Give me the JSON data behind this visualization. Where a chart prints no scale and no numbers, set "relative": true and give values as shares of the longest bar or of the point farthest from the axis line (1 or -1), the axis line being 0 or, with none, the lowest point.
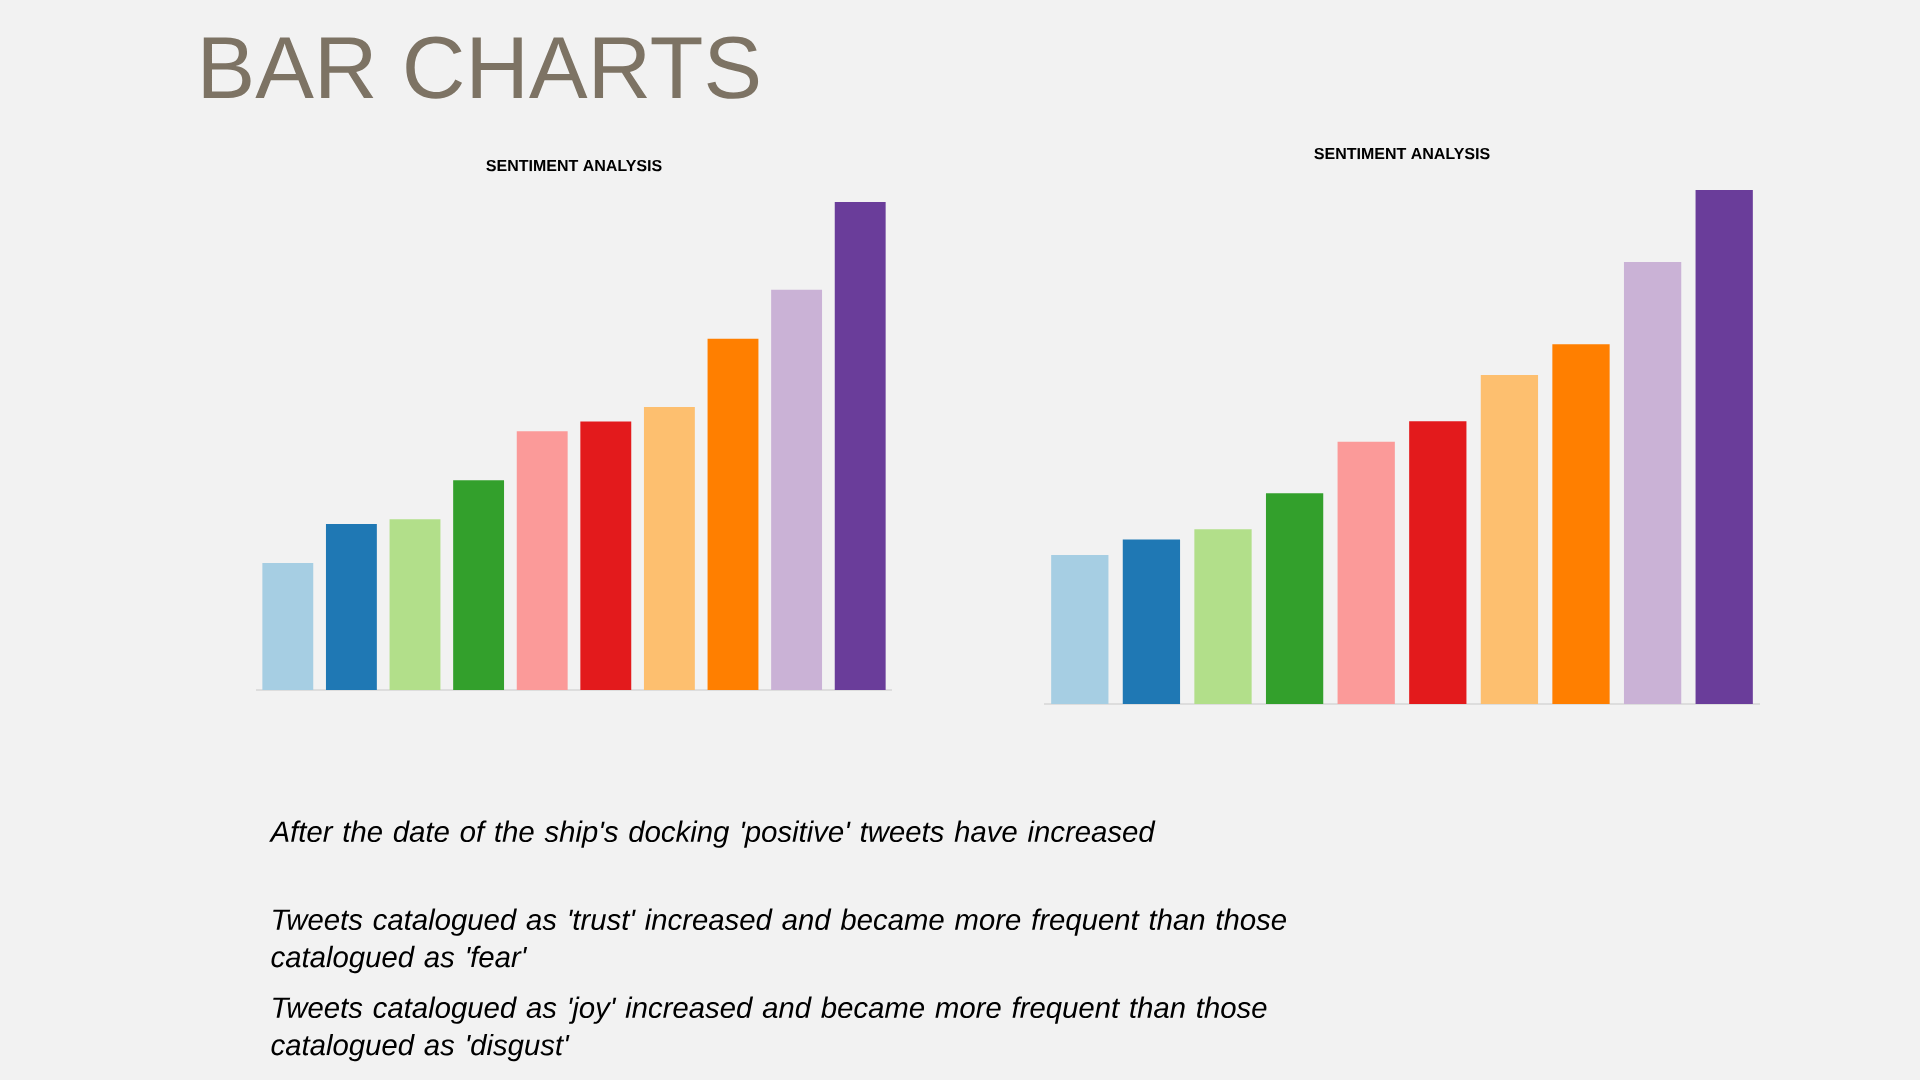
{
  "chart_data": [
    {
      "type": "other",
      "title": "BAR CHARTS",
      "annotations": [
        "After the date of the ship's docking 'positive' tweets have increased",
        "Tweets catalogued as 'trust' increased and became more frequent than those catalogued as 'fear'",
        "Tweets catalogued as 'joy' increased and became more frequent than those catalogued as 'disgust'"
      ]
    },
    {
      "type": "bar",
      "title": "SENTIMENT ANALYSIS",
      "relative": true,
      "categories": [
        null,
        null,
        null,
        null,
        null,
        null,
        null,
        null,
        null,
        null
      ],
      "values": [
        0.26,
        0.34,
        0.35,
        0.43,
        0.53,
        0.55,
        0.58,
        0.72,
        0.82,
        1
      ],
      "colors": [
        "#a6cee3",
        "#1f78b4",
        "#b2df8a",
        "#33a02c",
        "#fb9a99",
        "#e31a1c",
        "#fdbf6f",
        "#ff7f00",
        "#cab2d6",
        "#6a3d9a"
      ]
    },
    {
      "type": "bar",
      "title": "SENTIMENT ANALYSIS",
      "relative": true,
      "categories": [
        null,
        null,
        null,
        null,
        null,
        null,
        null,
        null,
        null,
        null
      ],
      "values": [
        0.29,
        0.32,
        0.34,
        0.41,
        0.51,
        0.55,
        0.64,
        0.7,
        0.86,
        1
      ],
      "colors": [
        "#a6cee3",
        "#1f78b4",
        "#b2df8a",
        "#33a02c",
        "#fb9a99",
        "#e31a1c",
        "#fdbf6f",
        "#ff7f00",
        "#cab2d6",
        "#6a3d9a"
      ]
    }
  ]
}
